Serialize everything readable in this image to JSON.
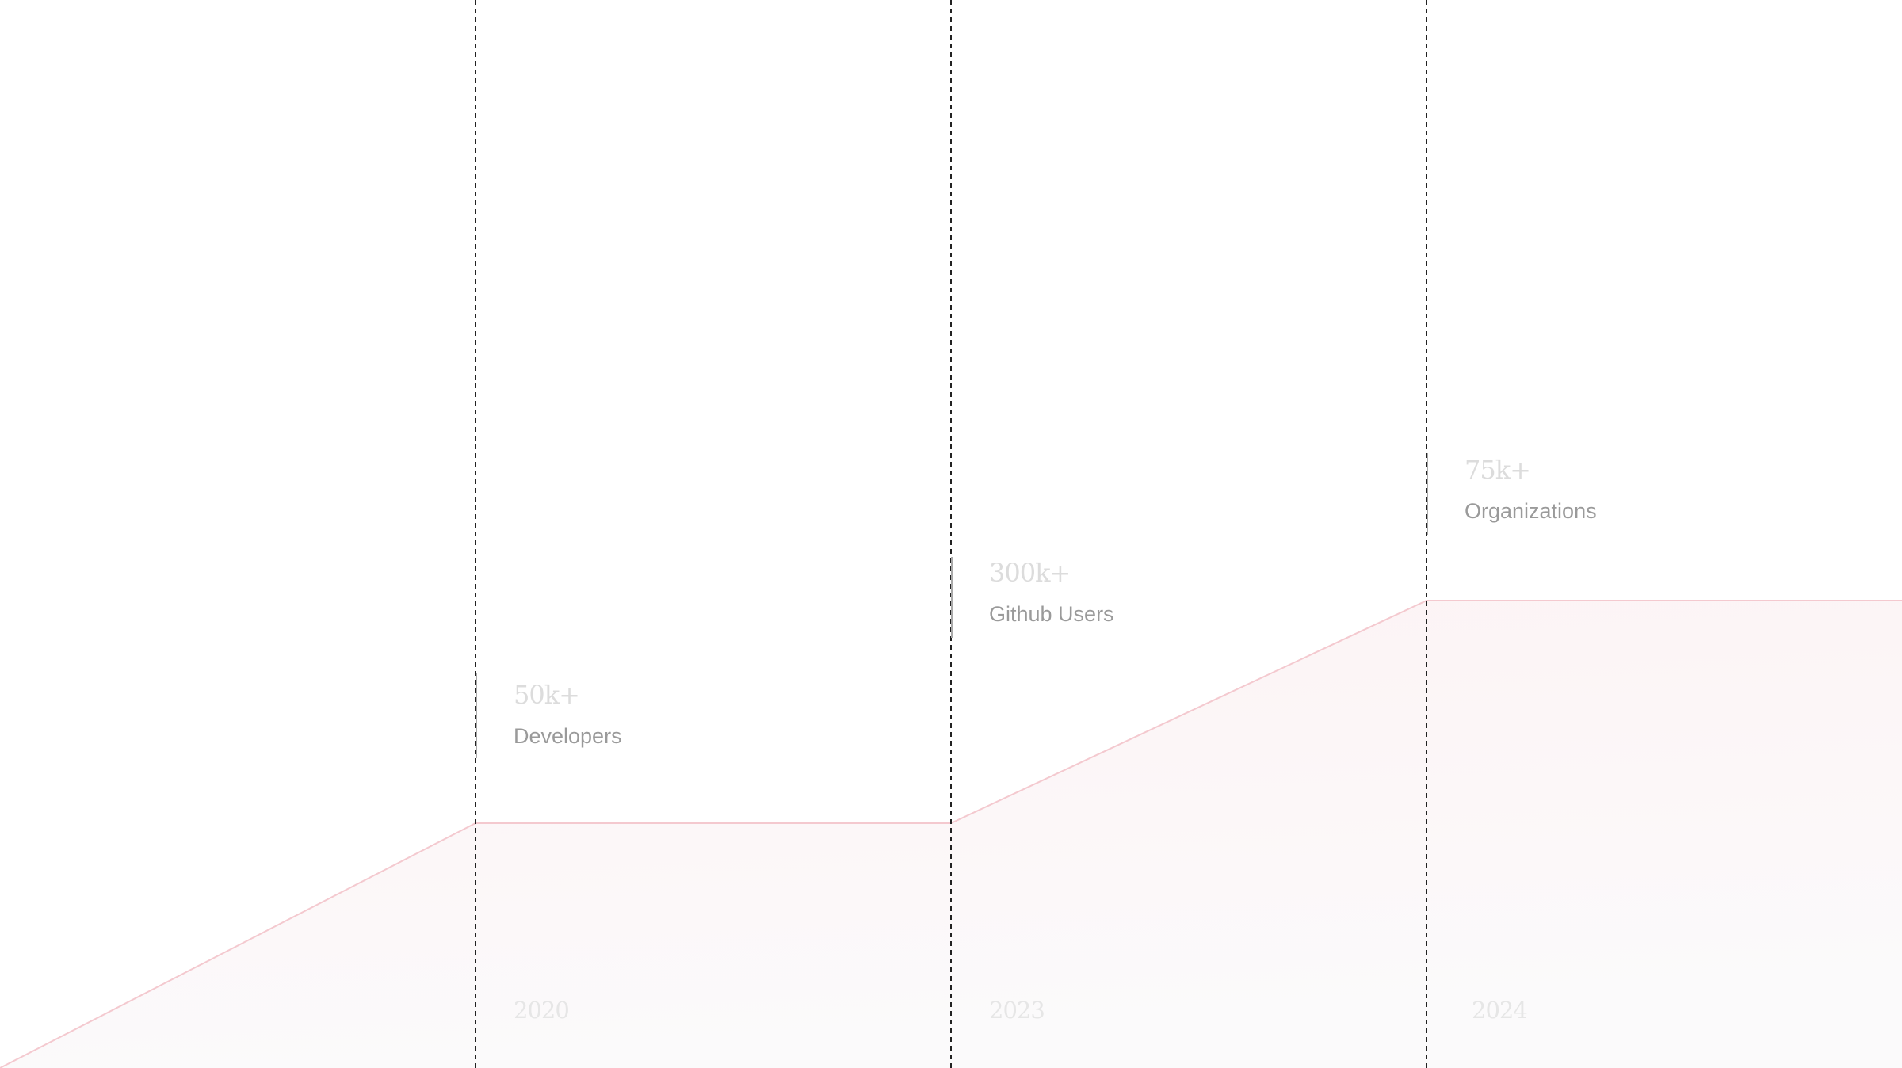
{
  "milestones": [
    {
      "value": "50k+",
      "label": "Developers",
      "year": "2020"
    },
    {
      "value": "300k+",
      "label": "Github Users",
      "year": "2023"
    },
    {
      "value": "75k+",
      "label": "Organizations",
      "year": "2024"
    }
  ]
}
